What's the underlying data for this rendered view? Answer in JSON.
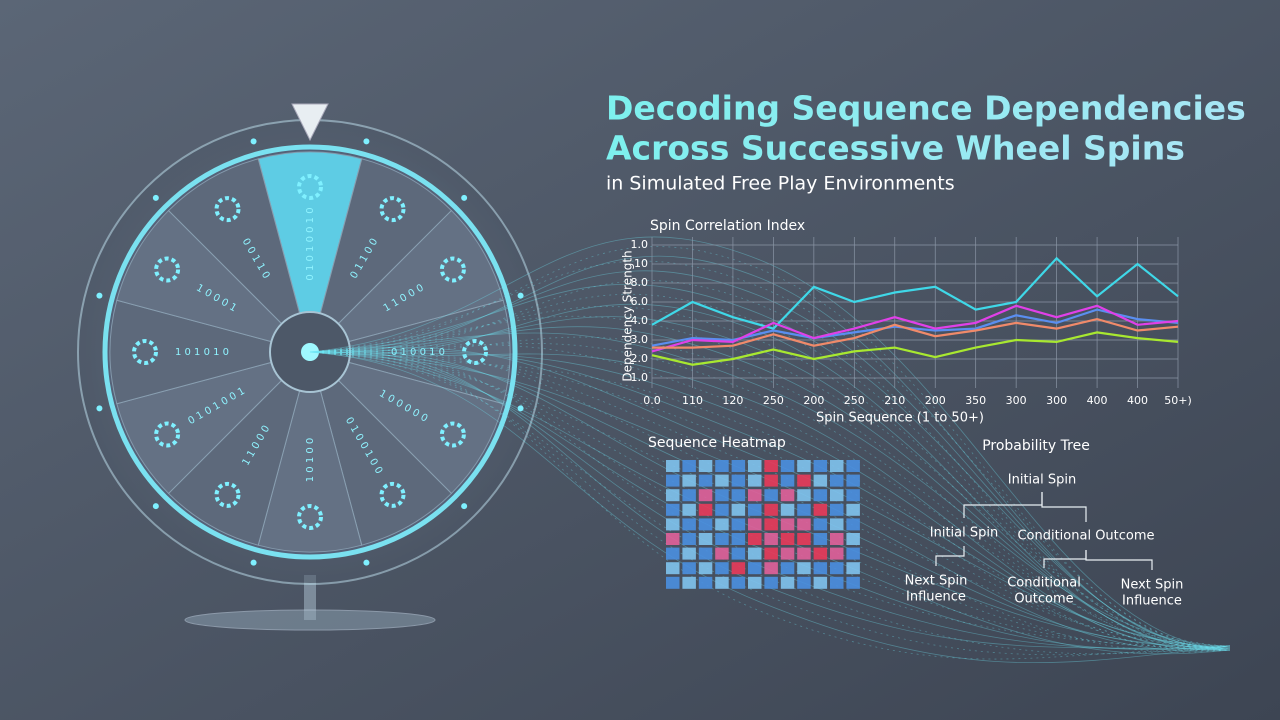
{
  "header": {
    "title_line1": "Decoding Sequence Dependencies",
    "title_line2": "Across Successive Wheel Spins",
    "subtitle": "in Simulated Free Play Environments"
  },
  "chart_data": {
    "type": "line",
    "title": "Spin Correlation Index",
    "y_label": "Dependency Strength",
    "x_label": "Spin Sequence (1 to 50+)",
    "categories": [
      "0.0",
      "110",
      "120",
      "250",
      "200",
      "250",
      "210",
      "200",
      "350",
      "300",
      "300",
      "400",
      "400",
      "50+)"
    ],
    "ylim": [
      0,
      7
    ],
    "yticks": [
      {
        "value": 7,
        "label": "1.0"
      },
      {
        "value": 6,
        "label": "10"
      },
      {
        "value": 5,
        "label": "8.0"
      },
      {
        "value": 4,
        "label": "6.0"
      },
      {
        "value": 3,
        "label": "4.0"
      },
      {
        "value": 2,
        "label": "3.0"
      },
      {
        "value": 1,
        "label": "2.0"
      },
      {
        "value": 0,
        "label": "1.0"
      }
    ],
    "grid": true,
    "series": [
      {
        "color": "#3fd8e8",
        "values": [
          2.8,
          4.0,
          3.2,
          2.6,
          4.8,
          4.0,
          4.5,
          4.8,
          3.6,
          4.0,
          6.3,
          4.3,
          6.0,
          4.3
        ]
      },
      {
        "color": "#5a8ef0",
        "values": [
          1.7,
          2.1,
          2.0,
          2.5,
          2.1,
          2.4,
          2.7,
          2.5,
          2.6,
          3.3,
          2.9,
          3.6,
          3.1,
          2.9
        ]
      },
      {
        "color": "#e040e8",
        "values": [
          1.4,
          2.0,
          1.9,
          2.9,
          2.1,
          2.6,
          3.2,
          2.6,
          2.9,
          3.8,
          3.2,
          3.8,
          2.8,
          3.0
        ]
      },
      {
        "color": "#f08a6a",
        "values": [
          1.6,
          1.6,
          1.7,
          2.3,
          1.7,
          2.1,
          2.8,
          2.2,
          2.5,
          2.9,
          2.6,
          3.1,
          2.5,
          2.7
        ]
      },
      {
        "color": "#a8e830",
        "values": [
          1.2,
          0.7,
          1.0,
          1.5,
          1.0,
          1.4,
          1.6,
          1.1,
          1.6,
          2.0,
          1.9,
          2.4,
          2.1,
          1.9
        ]
      }
    ]
  },
  "heatmap": {
    "title": "Sequence Heatmap",
    "colors": [
      "#7fc3ee",
      "#4a8fe0",
      "#e0609a",
      "#e83a5a"
    ],
    "cells": [
      [
        0,
        1,
        0,
        1,
        1,
        0,
        3,
        1,
        0,
        1,
        0,
        1
      ],
      [
        1,
        0,
        1,
        0,
        1,
        0,
        3,
        1,
        3,
        0,
        1,
        1
      ],
      [
        0,
        1,
        2,
        1,
        1,
        2,
        1,
        2,
        0,
        1,
        0,
        1
      ],
      [
        1,
        0,
        3,
        1,
        0,
        1,
        3,
        0,
        1,
        3,
        1,
        0
      ],
      [
        0,
        1,
        1,
        0,
        1,
        2,
        3,
        2,
        2,
        1,
        0,
        1
      ],
      [
        2,
        1,
        0,
        1,
        1,
        3,
        2,
        3,
        3,
        1,
        2,
        0
      ],
      [
        1,
        0,
        1,
        2,
        1,
        0,
        3,
        2,
        2,
        3,
        2,
        1
      ],
      [
        0,
        1,
        0,
        1,
        3,
        1,
        2,
        1,
        0,
        1,
        1,
        0
      ],
      [
        1,
        0,
        1,
        0,
        1,
        0,
        1,
        0,
        1,
        0,
        1,
        1
      ]
    ]
  },
  "tree": {
    "title": "Probability Tree",
    "nodes": [
      {
        "lines": [
          "Initial Spin"
        ]
      },
      {
        "lines": [
          "Initial Spin"
        ]
      },
      {
        "lines": [
          "Conditional Outcome"
        ]
      },
      {
        "lines": [
          "Next Spin",
          "Influence"
        ]
      },
      {
        "lines": [
          "Conditional",
          "Outcome"
        ]
      },
      {
        "lines": [
          "Next Spin",
          "Influence"
        ]
      }
    ]
  },
  "wheel": {
    "codes": [
      "0 1 0 1 0 0 1 0",
      "0 1 1 0 0",
      "1 1 0 0 0",
      "0 1 0 0 1 0",
      "1 0 0 0 0 0",
      "0 1 0 0 1 0 0",
      "1 0 1 0 0",
      "1 1 0 0 0",
      "0 1 0 1 0 0 1",
      "1 0 1 0 1 0",
      "1 0 0 0 1",
      "0 0 1 1 0"
    ]
  }
}
